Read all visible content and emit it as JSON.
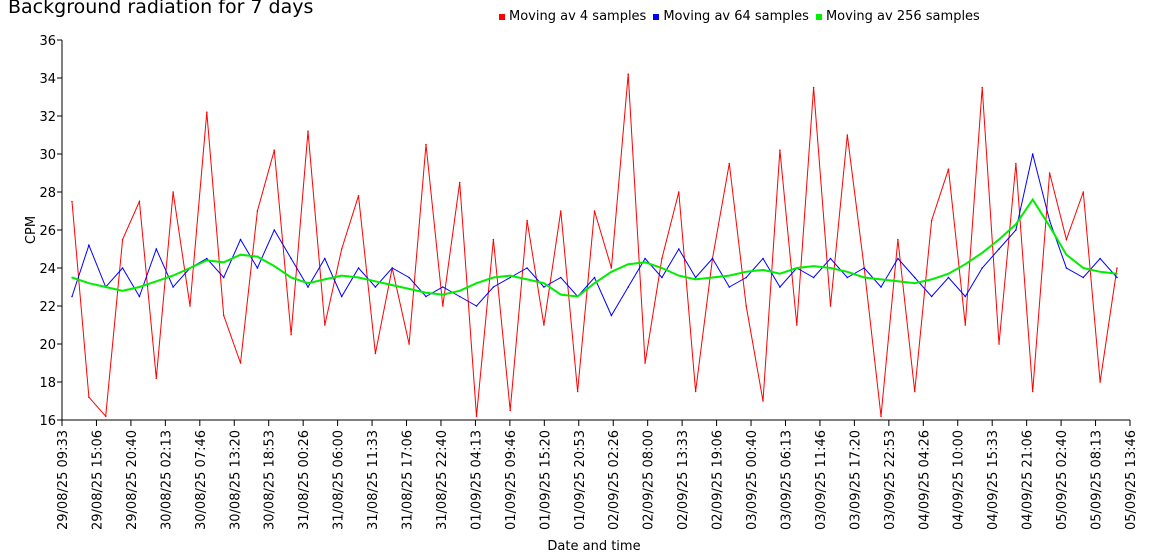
{
  "chart_data": {
    "type": "line",
    "title": "Background radiation for 7 days",
    "xlabel": "Date and time",
    "ylabel": "CPM",
    "ylim": [
      16,
      36
    ],
    "yticks": [
      16,
      18,
      20,
      22,
      24,
      26,
      28,
      30,
      32,
      34,
      36
    ],
    "x_tick_labels": [
      "29/08/25 09:33",
      "29/08/25 15:06",
      "29/08/25 20:40",
      "30/08/25 02:13",
      "30/08/25 07:46",
      "30/08/25 13:20",
      "30/08/25 18:53",
      "31/08/25 00:26",
      "31/08/25 06:00",
      "31/08/25 11:33",
      "31/08/25 17:06",
      "31/08/25 22:40",
      "01/09/25 04:13",
      "01/09/25 09:46",
      "01/09/25 15:20",
      "01/09/25 20:53",
      "02/09/25 02:26",
      "02/09/25 08:00",
      "02/09/25 13:33",
      "02/09/25 19:06",
      "03/09/25 00:40",
      "03/09/25 06:13",
      "03/09/25 11:46",
      "03/09/25 17:20",
      "03/09/25 22:53",
      "04/09/25 04:26",
      "04/09/25 10:00",
      "04/09/25 15:33",
      "04/09/25 21:06",
      "05/09/25 02:40",
      "05/09/25 08:13",
      "05/09/25 13:46"
    ],
    "grid": false,
    "legend_position": "top",
    "x": [
      "29/08/25 09:33",
      "29/08/25 12:20",
      "29/08/25 15:06",
      "29/08/25 17:53",
      "29/08/25 20:40",
      "29/08/25 23:26",
      "30/08/25 02:13",
      "30/08/25 05:00",
      "30/08/25 07:46",
      "30/08/25 10:33",
      "30/08/25 13:20",
      "30/08/25 16:06",
      "30/08/25 18:53",
      "30/08/25 21:40",
      "31/08/25 00:26",
      "31/08/25 03:13",
      "31/08/25 06:00",
      "31/08/25 08:46",
      "31/08/25 11:33",
      "31/08/25 14:20",
      "31/08/25 17:06",
      "31/08/25 19:53",
      "31/08/25 22:40",
      "01/09/25 01:26",
      "01/09/25 04:13",
      "01/09/25 07:00",
      "01/09/25 09:46",
      "01/09/25 12:33",
      "01/09/25 15:20",
      "01/09/25 18:06",
      "01/09/25 20:53",
      "01/09/25 23:40",
      "02/09/25 02:26",
      "02/09/25 05:13",
      "02/09/25 08:00",
      "02/09/25 10:46",
      "02/09/25 13:33",
      "02/09/25 16:20",
      "02/09/25 19:06",
      "02/09/25 21:53",
      "03/09/25 00:40",
      "03/09/25 03:26",
      "03/09/25 06:13",
      "03/09/25 09:00",
      "03/09/25 11:46",
      "03/09/25 14:33",
      "03/09/25 17:20",
      "03/09/25 20:06",
      "03/09/25 22:53",
      "04/09/25 01:40",
      "04/09/25 04:26",
      "04/09/25 07:13",
      "04/09/25 10:00",
      "04/09/25 12:46",
      "04/09/25 15:33",
      "04/09/25 18:20",
      "04/09/25 21:06",
      "04/09/25 23:53",
      "05/09/25 02:40",
      "05/09/25 05:26",
      "05/09/25 08:13",
      "05/09/25 11:00",
      "05/09/25 13:46"
    ],
    "series": [
      {
        "name": "Moving av 4 samples",
        "color": "#ff0000",
        "values": [
          27.5,
          17.2,
          16.2,
          25.5,
          27.5,
          18.2,
          28.0,
          22.0,
          32.2,
          21.5,
          19.0,
          27.0,
          30.2,
          20.5,
          31.2,
          21.0,
          25.0,
          27.8,
          19.5,
          24.0,
          20.0,
          30.5,
          22.0,
          28.5,
          16.2,
          25.5,
          16.5,
          26.5,
          21.0,
          27.0,
          17.5,
          27.0,
          24.0,
          34.2,
          19.0,
          24.5,
          28.0,
          17.5,
          24.5,
          29.5,
          22.0,
          17.0,
          30.2,
          21.0,
          33.5,
          22.0,
          31.0,
          24.0,
          16.2,
          25.5,
          17.5,
          26.5,
          29.2,
          21.0,
          33.5,
          20.0,
          29.5,
          17.5,
          29.0,
          25.5,
          28.0,
          18.0,
          24.0
        ]
      },
      {
        "name": "Moving av 64 samples",
        "color": "#0000ff",
        "values": [
          22.5,
          25.2,
          23.0,
          24.0,
          22.5,
          25.0,
          23.0,
          24.0,
          24.5,
          23.5,
          25.5,
          24.0,
          26.0,
          24.5,
          23.0,
          24.5,
          22.5,
          24.0,
          23.0,
          24.0,
          23.5,
          22.5,
          23.0,
          22.5,
          22.0,
          23.0,
          23.5,
          24.0,
          23.0,
          23.5,
          22.5,
          23.5,
          21.5,
          23.0,
          24.5,
          23.5,
          25.0,
          23.5,
          24.5,
          23.0,
          23.5,
          24.5,
          23.0,
          24.0,
          23.5,
          24.5,
          23.5,
          24.0,
          23.0,
          24.5,
          23.5,
          22.5,
          23.5,
          22.5,
          24.0,
          25.0,
          26.0,
          30.0,
          26.5,
          24.0,
          23.5,
          24.5,
          23.5
        ]
      },
      {
        "name": "Moving av 256 samples",
        "color": "#00ee00",
        "values": [
          23.5,
          23.2,
          23.0,
          22.8,
          23.0,
          23.3,
          23.6,
          24.0,
          24.4,
          24.3,
          24.7,
          24.6,
          24.1,
          23.5,
          23.2,
          23.4,
          23.6,
          23.5,
          23.3,
          23.1,
          22.9,
          22.7,
          22.6,
          22.8,
          23.2,
          23.5,
          23.6,
          23.4,
          23.2,
          22.6,
          22.5,
          23.2,
          23.8,
          24.2,
          24.3,
          24.0,
          23.6,
          23.4,
          23.5,
          23.6,
          23.8,
          23.9,
          23.7,
          24.0,
          24.1,
          24.0,
          23.8,
          23.5,
          23.4,
          23.3,
          23.2,
          23.4,
          23.7,
          24.2,
          24.8,
          25.5,
          26.3,
          27.6,
          26.2,
          24.7,
          24.0,
          23.8,
          23.7
        ]
      }
    ]
  }
}
